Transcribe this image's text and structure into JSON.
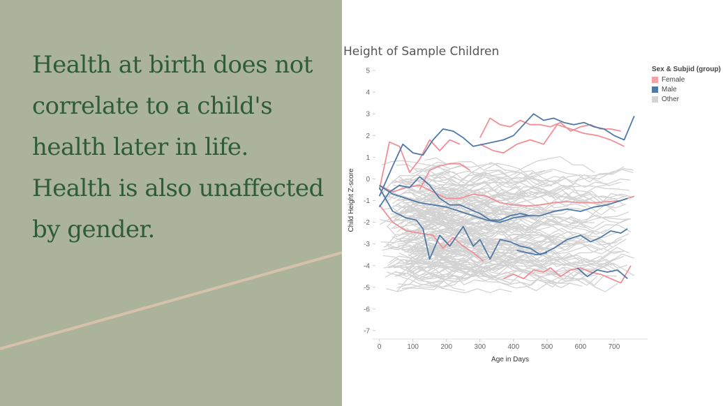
{
  "slide": {
    "headline": "Health at birth does not correlate to a child's health later in life. Health is also unaffected by gender.",
    "colors": {
      "panel": "#abb49b",
      "headline": "#2e5c38",
      "accent_line": "#d6c2aa"
    }
  },
  "chart_data": {
    "type": "line",
    "title": "Height of Sample Children",
    "xlabel": "Age in Days",
    "ylabel": "Child Height Z-score",
    "xlim": [
      -20,
      800
    ],
    "ylim": [
      -7,
      5
    ],
    "xticks": [
      0,
      100,
      200,
      300,
      400,
      500,
      600,
      700
    ],
    "yticks": [
      5,
      4,
      3,
      2,
      1,
      0,
      -1,
      -2,
      -3,
      -4,
      -5,
      -6,
      -7
    ],
    "grid": false,
    "legend": {
      "title": "Sex & Subjid (group)",
      "position": "top-right",
      "items": [
        {
          "label": "Female",
          "color": "#f4a1a8"
        },
        {
          "label": "Male",
          "color": "#4e79a7"
        },
        {
          "label": "Other",
          "color": "#d3d3d3"
        }
      ]
    },
    "series": [
      {
        "group": "Female",
        "color": "#f08e98",
        "x": [
          0,
          30,
          60,
          90,
          120,
          150,
          180,
          210,
          240
        ],
        "y": [
          -0.5,
          1.7,
          1.5,
          0.3,
          0.9,
          1.8,
          1.3,
          1.8,
          1.6
        ]
      },
      {
        "group": "Female",
        "color": "#f08e98",
        "x": [
          120,
          150,
          180,
          210,
          240,
          270
        ],
        "y": [
          -0.5,
          0.4,
          0.6,
          0.7,
          0.7,
          0.4
        ]
      },
      {
        "group": "Female",
        "color": "#f08e98",
        "x": [
          300,
          330,
          360,
          390,
          420,
          450,
          480,
          510,
          540,
          570,
          600,
          630,
          660,
          690,
          720
        ],
        "y": [
          1.9,
          2.8,
          2.5,
          2.4,
          2.7,
          2.5,
          2.5,
          2.4,
          2.6,
          2.2,
          2.4,
          2.5,
          2.3,
          2.3,
          2.2
        ]
      },
      {
        "group": "Female",
        "color": "#f08e98",
        "x": [
          300,
          340,
          370,
          410,
          450,
          490,
          530,
          570,
          610,
          650,
          690,
          730
        ],
        "y": [
          1.6,
          1.3,
          1.2,
          1.6,
          1.8,
          1.6,
          2.5,
          2.3,
          2.1,
          2.0,
          1.8,
          1.5
        ]
      },
      {
        "group": "Female",
        "color": "#f08e98",
        "x": [
          0,
          40,
          80,
          120,
          160,
          200,
          240,
          280,
          320,
          360,
          400,
          440,
          480,
          520,
          560,
          600,
          640,
          680,
          720,
          760
        ],
        "y": [
          -0.3,
          -0.6,
          -0.4,
          -0.3,
          -0.6,
          -0.9,
          -0.9,
          -0.7,
          -0.8,
          -1.1,
          -1.2,
          -1.25,
          -1.2,
          -1.1,
          -1.05,
          -1.1,
          -1.1,
          -1.05,
          -1.0,
          -0.8
        ]
      },
      {
        "group": "Female",
        "color": "#f08e98",
        "x": [
          0,
          40,
          80,
          120,
          160,
          190,
          220,
          250,
          280,
          310
        ],
        "y": [
          -1.2,
          -2.0,
          -2.4,
          -2.5,
          -2.6,
          -3.2,
          -2.7,
          -3.1,
          -3.4,
          -3.8
        ]
      },
      {
        "group": "Female",
        "color": "#f08e98",
        "x": [
          370,
          400,
          430,
          460,
          490,
          510,
          540,
          570,
          600,
          630,
          660,
          690,
          720,
          750
        ],
        "y": [
          -4.6,
          -4.4,
          -4.6,
          -4.2,
          -4.3,
          -4.1,
          -4.5,
          -4.2,
          -4.1,
          -4.3,
          -4.4,
          -4.6,
          -4.8,
          -4.0
        ]
      },
      {
        "group": "Male",
        "color": "#4e79a7",
        "x": [
          0,
          20,
          40,
          70,
          100,
          130,
          160,
          190,
          220,
          250,
          280,
          310,
          340,
          370,
          400,
          430,
          460,
          490,
          520,
          550,
          580,
          610,
          640,
          670,
          700,
          730,
          760
        ],
        "y": [
          -0.8,
          -0.1,
          0.6,
          1.6,
          1.2,
          1.1,
          1.8,
          2.3,
          2.2,
          1.9,
          1.5,
          1.6,
          1.7,
          1.8,
          2.0,
          2.5,
          3.0,
          2.7,
          2.8,
          2.6,
          2.5,
          2.6,
          2.4,
          2.3,
          2.0,
          1.8,
          2.9
        ]
      },
      {
        "group": "Male",
        "color": "#4e79a7",
        "x": [
          0,
          30,
          60,
          90,
          120,
          150,
          180,
          210,
          240,
          270,
          300,
          330,
          360,
          390,
          420,
          450
        ],
        "y": [
          -1.3,
          -0.6,
          -0.3,
          -0.4,
          0.1,
          -0.3,
          -0.9,
          -1.2,
          -1.2,
          -1.4,
          -1.6,
          -1.9,
          -1.9,
          -1.7,
          -1.6,
          -1.7
        ]
      },
      {
        "group": "Male",
        "color": "#4e79a7",
        "x": [
          0,
          40,
          80,
          120,
          160,
          200,
          240,
          280,
          320,
          360,
          400,
          440,
          480,
          520,
          560,
          600,
          640,
          680,
          720,
          740
        ],
        "y": [
          -0.3,
          -0.7,
          -0.9,
          -1.1,
          -1.2,
          -1.3,
          -1.5,
          -1.7,
          -1.9,
          -2.0,
          -1.8,
          -1.7,
          -1.7,
          -1.5,
          -1.4,
          -1.5,
          -1.3,
          -1.2,
          -1.0,
          -0.9
        ]
      },
      {
        "group": "Male",
        "color": "#4e79a7",
        "x": [
          0,
          40,
          80,
          110,
          130,
          150,
          180,
          210,
          250,
          280,
          300,
          330,
          360,
          390,
          420,
          450,
          480,
          520,
          560,
          600,
          630,
          660,
          690,
          720,
          740
        ],
        "y": [
          -0.4,
          -1.5,
          -1.8,
          -1.9,
          -2.3,
          -3.7,
          -2.6,
          -3.1,
          -2.2,
          -3.1,
          -2.8,
          -3.7,
          -2.8,
          -2.9,
          -3.1,
          -3.2,
          -3.5,
          -3.2,
          -2.8,
          -2.6,
          -2.9,
          -2.7,
          -2.4,
          -2.5,
          -2.3
        ]
      },
      {
        "group": "Male",
        "color": "#4e79a7",
        "x": [
          410,
          440,
          470,
          500
        ],
        "y": [
          -3.3,
          -3.4,
          -3.5,
          -3.4
        ]
      },
      {
        "group": "Male",
        "color": "#4e79a7",
        "x": [
          590,
          620,
          650,
          680,
          710,
          740
        ],
        "y": [
          -4.1,
          -4.5,
          -4.2,
          -4.3,
          -4.2,
          -4.6
        ]
      }
    ]
  }
}
